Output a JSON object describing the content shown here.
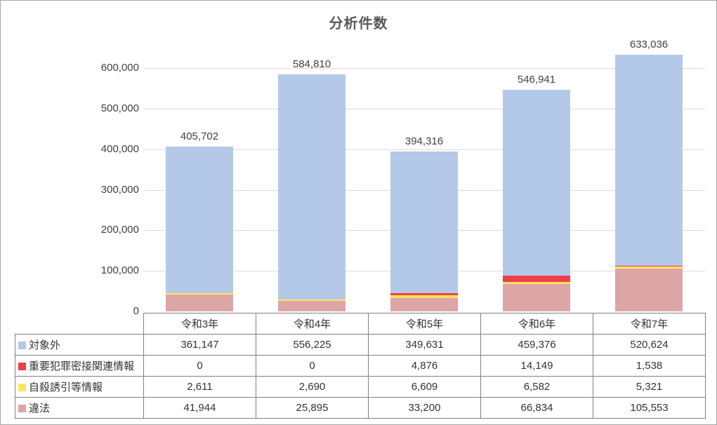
{
  "window": {
    "background": "#FFFFFF",
    "border_color": "#A6A6A6"
  },
  "chart_data": {
    "type": "bar",
    "stacked": true,
    "title": "分析件数",
    "categories": [
      "令和3年",
      "令和4年",
      "令和5年",
      "令和6年",
      "令和7年"
    ],
    "series": [
      {
        "name": "対象外",
        "color": "#B4C9E7",
        "values": [
          361147,
          556225,
          349631,
          459376,
          520624
        ],
        "formatted": [
          "361,147",
          "556,225",
          "349,631",
          "459,376",
          "520,624"
        ]
      },
      {
        "name": "重要犯罪密接関連情報",
        "color": "#EE3F4A",
        "values": [
          0,
          0,
          4876,
          14149,
          1538
        ],
        "formatted": [
          "0",
          "0",
          "4,876",
          "14,149",
          "1,538"
        ]
      },
      {
        "name": "自殺誘引等情報",
        "color": "#FFE45C",
        "values": [
          2611,
          2690,
          6609,
          6582,
          5321
        ],
        "formatted": [
          "2,611",
          "2,690",
          "6,609",
          "6,582",
          "5,321"
        ]
      },
      {
        "name": "違法",
        "color": "#DCA6A6",
        "values": [
          41944,
          25895,
          33200,
          66834,
          105553
        ],
        "formatted": [
          "41,944",
          "25,895",
          "33,200",
          "66,834",
          "105,553"
        ]
      }
    ],
    "stack_order_bottom_to_top": [
      3,
      2,
      1,
      0
    ],
    "bar_total_labels": [
      "405,702",
      "584,810",
      "394,316",
      "546,941",
      "633,036"
    ],
    "y_axis": {
      "min": 0,
      "max": 600000,
      "step": 100000,
      "tick_labels": [
        "0",
        "100,000",
        "200,000",
        "300,000",
        "400,000",
        "500,000",
        "600,000"
      ]
    },
    "grid": true,
    "legend_position": "data-table-left-column",
    "data_table_shown": true
  },
  "colors": {
    "title_text": "#595959",
    "axis_text": "#404040",
    "data_label_text": "#404040",
    "grid_line": "#DCDCDC",
    "table_border": "#808080",
    "table_text": "#333333"
  }
}
